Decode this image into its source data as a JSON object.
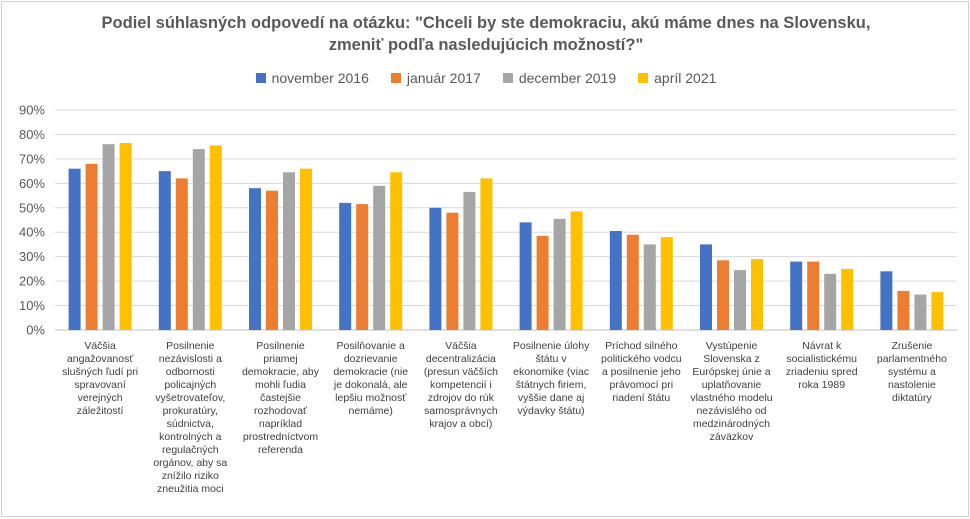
{
  "chart_data": {
    "type": "bar",
    "title": "Podiel súhlasných odpovedí na otázku: \"Chceli by ste demokraciu, akú máme dnes na Slovensku,",
    "subtitle": "zmeniť podľa nasledujúcich možností?\"",
    "ylim": [
      0,
      90
    ],
    "yticks": [
      "0%",
      "10%",
      "20%",
      "30%",
      "40%",
      "50%",
      "60%",
      "70%",
      "80%",
      "90%"
    ],
    "categories": [
      "Väčšia angažovanosť slušných ľudí pri spravovaní verejných záležitostí",
      "Posilnenie nezávislosti a odbornosti policajných vyšetrovateľov, prokuratúry, súdnictva, kontrolných a regulačných orgánov, aby sa znížilo riziko zneužitia moci",
      "Posilnenie priamej demokracie, aby mohli ľudia častejšie rozhodovať napríklad prostredníctvom referenda",
      "Posilňovanie a dozrievanie demokracie (nie je dokonalá, ale lepšiu možnosť nemáme)",
      "Väčšia decentralizácia (presun väčších kompetencií i zdrojov do rúk samosprávnych krajov a obcí)",
      "Posilnenie úlohy štátu v ekonomike (viac štátnych firiem, vyššie dane aj výdavky štátu)",
      "Príchod silného politického vodcu a posilnenie jeho právomocí pri riadení štátu",
      "Vystúpenie Slovenska z Európskej únie a uplatňovanie vlastného modelu nezávislého od medzinárodných záväzkov",
      "Návrat k socialistickému zriadeniu spred roka 1989",
      "Zrušenie parlamentného systému a nastolenie diktatúry"
    ],
    "series": [
      {
        "name": "november 2016",
        "color": "#4472C4",
        "values": [
          66,
          65,
          58,
          52,
          50,
          44,
          40.5,
          35,
          28,
          24
        ]
      },
      {
        "name": "január 2017",
        "color": "#ED7D31",
        "values": [
          68,
          62,
          57,
          51.5,
          48,
          38.5,
          39,
          28.5,
          28,
          16
        ]
      },
      {
        "name": "december 2019",
        "color": "#A5A5A5",
        "values": [
          76,
          74,
          64.5,
          59,
          56.5,
          45.5,
          35,
          24.5,
          23,
          14.5
        ]
      },
      {
        "name": "apríl 2021",
        "color": "#FFC000",
        "values": [
          76.5,
          75.5,
          66,
          64.5,
          62,
          48.5,
          38,
          29,
          25,
          15.5
        ]
      }
    ]
  }
}
